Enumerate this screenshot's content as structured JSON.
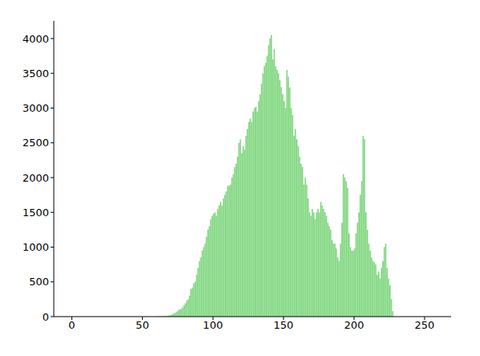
{
  "chart_data": {
    "type": "histogram",
    "color": "#7ed67e",
    "grid": false,
    "bins": [
      0,
      1,
      2,
      3,
      4,
      5,
      6,
      7,
      8,
      9,
      10,
      11,
      12,
      13,
      14,
      15,
      16,
      17,
      18,
      19,
      20,
      21,
      22,
      23,
      24,
      25,
      26,
      27,
      28,
      29,
      30,
      31,
      32,
      33,
      34,
      35,
      36,
      37,
      38,
      39,
      40,
      41,
      42,
      43,
      44,
      45,
      46,
      47,
      48,
      49,
      50,
      51,
      52,
      53,
      54,
      55,
      56,
      57,
      58,
      59,
      60,
      61,
      62,
      63,
      64,
      65,
      66,
      67,
      68,
      69,
      70,
      71,
      72,
      73,
      74,
      75,
      76,
      77,
      78,
      79,
      80,
      81,
      82,
      83,
      84,
      85,
      86,
      87,
      88,
      89,
      90,
      91,
      92,
      93,
      94,
      95,
      96,
      97,
      98,
      99,
      100,
      101,
      102,
      103,
      104,
      105,
      106,
      107,
      108,
      109,
      110,
      111,
      112,
      113,
      114,
      115,
      116,
      117,
      118,
      119,
      120,
      121,
      122,
      123,
      124,
      125,
      126,
      127,
      128,
      129,
      130,
      131,
      132,
      133,
      134,
      135,
      136,
      137,
      138,
      139,
      140,
      141,
      142,
      143,
      144,
      145,
      146,
      147,
      148,
      149,
      150,
      151,
      152,
      153,
      154,
      155,
      156,
      157,
      158,
      159,
      160,
      161,
      162,
      163,
      164,
      165,
      166,
      167,
      168,
      169,
      170,
      171,
      172,
      173,
      174,
      175,
      176,
      177,
      178,
      179,
      180,
      181,
      182,
      183,
      184,
      185,
      186,
      187,
      188,
      189,
      190,
      191,
      192,
      193,
      194,
      195,
      196,
      197,
      198,
      199,
      200,
      201,
      202,
      203,
      204,
      205,
      206,
      207,
      208,
      209,
      210,
      211,
      212,
      213,
      214,
      215,
      216,
      217,
      218,
      219,
      220,
      221,
      222,
      223,
      224,
      225,
      226,
      227,
      228,
      229,
      230,
      231,
      232,
      233,
      234,
      235,
      236,
      237,
      238,
      239,
      240,
      241,
      242,
      243,
      244,
      245,
      246,
      247,
      248,
      249,
      250,
      251,
      252,
      253,
      254,
      255,
      256
    ],
    "counts": [
      0,
      0,
      0,
      0,
      0,
      0,
      0,
      0,
      0,
      0,
      0,
      0,
      0,
      0,
      0,
      0,
      0,
      0,
      0,
      0,
      0,
      0,
      0,
      0,
      0,
      0,
      0,
      0,
      0,
      0,
      0,
      0,
      0,
      0,
      0,
      0,
      0,
      0,
      0,
      0,
      0,
      0,
      0,
      0,
      0,
      0,
      0,
      0,
      0,
      0,
      0,
      0,
      0,
      0,
      0,
      0,
      0,
      0,
      0,
      0,
      2,
      3,
      3,
      4,
      5,
      5,
      8,
      10,
      15,
      20,
      25,
      35,
      45,
      55,
      70,
      90,
      100,
      110,
      130,
      160,
      190,
      230,
      250,
      300,
      400,
      420,
      480,
      500,
      600,
      700,
      800,
      850,
      950,
      1000,
      1050,
      1150,
      1250,
      1300,
      1400,
      1450,
      1480,
      1500,
      1450,
      1550,
      1600,
      1650,
      1600,
      1700,
      1750,
      1800,
      1880,
      1880,
      1900,
      2000,
      2050,
      2150,
      2200,
      2300,
      2500,
      2550,
      2350,
      2450,
      2400,
      2600,
      2700,
      2800,
      2850,
      2800,
      2950,
      3000,
      3020,
      2950,
      3100,
      3200,
      3350,
      3500,
      3600,
      3650,
      3750,
      3900,
      4000,
      4050,
      3700,
      3850,
      3600,
      3550,
      3500,
      3400,
      3300,
      3200,
      3100,
      3000,
      3550,
      3450,
      3300,
      3000,
      2900,
      2600,
      2700,
      2550,
      2450,
      2300,
      2200,
      2150,
      1900,
      2000,
      1900,
      1700,
      1500,
      1450,
      1550,
      1500,
      1400,
      1500,
      1550,
      1500,
      1650,
      1600,
      1550,
      1500,
      1450,
      1350,
      1300,
      1250,
      1100,
      1050,
      1050,
      980,
      850,
      800,
      1050,
      1350,
      2050,
      2000,
      1950,
      1850,
      1200,
      1000,
      950,
      950,
      980,
      1200,
      1350,
      1500,
      1750,
      1950,
      2600,
      2550,
      1500,
      1250,
      1050,
      950,
      850,
      800,
      780,
      750,
      600,
      650,
      550,
      700,
      800,
      1000,
      1050,
      700,
      550,
      450,
      250,
      80,
      0,
      0,
      0,
      0,
      0,
      0,
      0,
      0,
      0,
      0,
      0,
      0,
      0,
      0,
      0,
      0,
      0,
      0,
      0,
      0,
      0,
      0,
      0,
      0,
      0,
      0,
      0,
      0
    ],
    "xlim": [
      -12.8,
      268.8
    ],
    "xticks": [
      0,
      50,
      100,
      150,
      200,
      250
    ],
    "ylim": [
      0,
      4254
    ],
    "yticks": [
      0,
      500,
      1000,
      1500,
      2000,
      2500,
      3000,
      3500,
      4000
    ]
  }
}
